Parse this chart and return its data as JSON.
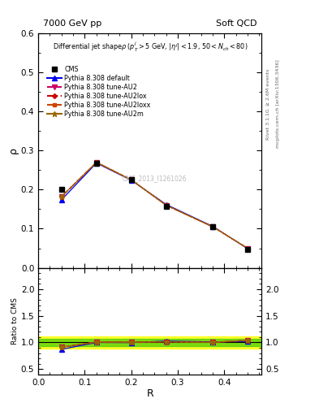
{
  "title_top": "7000 GeV pp",
  "title_top_right": "Soft QCD",
  "plot_title": "Differential jet shapeρ (p$_T^j$>5 GeV, |η$^j$|<1.9, 50<N$_{ch}$<80)",
  "xlabel": "R",
  "ylabel_main": "ρ",
  "ylabel_ratio": "Ratio to CMS",
  "right_label_top": "Rivet 3.1.10, ≥ 2.6M events",
  "right_label_bot": "mcplots.cern.ch [arXiv:1306.3436]",
  "watermark": "CMS_2013_I1261026",
  "x_values": [
    0.05,
    0.125,
    0.2,
    0.275,
    0.375,
    0.45
  ],
  "cms_y": [
    0.2,
    0.268,
    0.225,
    0.158,
    0.105,
    0.048
  ],
  "lines": [
    {
      "label": "Pythia 8.308 default",
      "color": "#0000ee",
      "style": "-",
      "marker": "^",
      "markersize": 4,
      "y": [
        0.174,
        0.268,
        0.224,
        0.162,
        0.106,
        0.049
      ]
    },
    {
      "label": "Pythia 8.308 tune-AU2",
      "color": "#cc0066",
      "style": "--",
      "marker": "v",
      "markersize": 4,
      "y": [
        0.182,
        0.27,
        0.225,
        0.16,
        0.105,
        0.05
      ]
    },
    {
      "label": "Pythia 8.308 tune-AU2lox",
      "color": "#cc0000",
      "style": "-.",
      "marker": "D",
      "markersize": 3,
      "y": [
        0.182,
        0.27,
        0.225,
        0.16,
        0.105,
        0.05
      ]
    },
    {
      "label": "Pythia 8.308 tune-AU2loxx",
      "color": "#cc4400",
      "style": "--",
      "marker": "s",
      "markersize": 3,
      "y": [
        0.182,
        0.27,
        0.225,
        0.16,
        0.105,
        0.05
      ]
    },
    {
      "label": "Pythia 8.308 tune-AU2m",
      "color": "#996600",
      "style": "-",
      "marker": "*",
      "markersize": 5,
      "y": [
        0.182,
        0.27,
        0.225,
        0.16,
        0.105,
        0.05
      ]
    }
  ],
  "ratio_lines": [
    {
      "color": "#0000ee",
      "style": "-",
      "marker": "^",
      "markersize": 4,
      "y": [
        0.87,
        1.0,
        0.997,
        1.025,
        1.01,
        1.02
      ]
    },
    {
      "color": "#cc0066",
      "style": "--",
      "marker": "v",
      "markersize": 4,
      "y": [
        0.91,
        1.007,
        1.003,
        1.013,
        1.0,
        1.04
      ]
    },
    {
      "color": "#cc0000",
      "style": "-.",
      "marker": "D",
      "markersize": 3,
      "y": [
        0.91,
        1.007,
        1.003,
        1.013,
        1.0,
        1.04
      ]
    },
    {
      "color": "#cc4400",
      "style": "--",
      "marker": "s",
      "markersize": 3,
      "y": [
        0.91,
        1.007,
        1.003,
        1.013,
        1.0,
        1.04
      ]
    },
    {
      "color": "#996600",
      "style": "-",
      "marker": "*",
      "markersize": 5,
      "y": [
        0.91,
        1.007,
        1.003,
        1.013,
        1.0,
        1.04
      ]
    }
  ],
  "band_yellow": [
    0.88,
    1.12
  ],
  "band_green": [
    0.93,
    1.07
  ],
  "ylim_main": [
    0.0,
    0.6
  ],
  "ylim_ratio": [
    0.4,
    2.4
  ],
  "yticks_ratio": [
    0.5,
    1.0,
    1.5,
    2.0
  ],
  "xlim": [
    0.0,
    0.48
  ]
}
